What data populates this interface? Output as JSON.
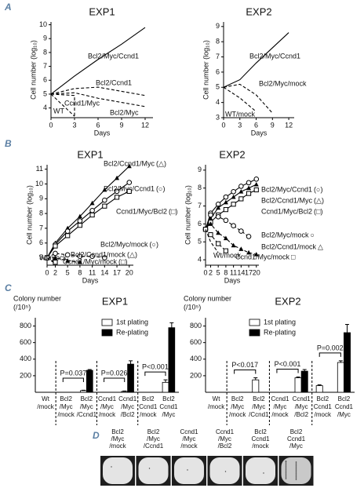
{
  "panel_labels": [
    "A",
    "B",
    "C",
    "D"
  ],
  "chart_data": [
    {
      "type": "line",
      "title": "EXP1",
      "xlabel": "Days",
      "ylabel": "Cell number (log₁₀)",
      "xlim": [
        0,
        13
      ],
      "xticks": [
        0,
        3,
        6,
        9,
        12
      ],
      "ylim": [
        3.3,
        10.2
      ],
      "yticks": [
        4,
        5,
        6,
        7,
        8,
        9,
        10
      ],
      "series": [
        {
          "name": "Bcl2/Myc/Ccnd1",
          "color": "#000000",
          "linestyle": "solid",
          "x": [
            0,
            3,
            6,
            9,
            12
          ],
          "values": [
            5,
            6.3,
            7.5,
            8.6,
            9.8
          ]
        },
        {
          "name": "Bcl2/Ccnd1",
          "color": "#000000",
          "linestyle": "dashed",
          "x": [
            0,
            3,
            6,
            9,
            12
          ],
          "values": [
            5,
            5.4,
            5.5,
            5.2,
            4.9
          ]
        },
        {
          "name": "Ccnd1/Myc",
          "color": "#000000",
          "linestyle": "dashed",
          "x": [
            0,
            3,
            3
          ],
          "values": [
            5,
            4.9,
            3.3
          ]
        },
        {
          "name": "Bcl2/Myc",
          "color": "#000000",
          "linestyle": "dashed",
          "x": [
            0,
            3,
            6,
            9,
            12
          ],
          "values": [
            5,
            5.1,
            4.7,
            4.4,
            4.1
          ]
        },
        {
          "name": "WT",
          "color": "#000000",
          "linestyle": "dashed",
          "x": [
            0,
            3
          ],
          "values": [
            5,
            3.4
          ]
        }
      ]
    },
    {
      "type": "line",
      "title": "EXP2",
      "xlabel": "Days",
      "ylabel": "Cell number (log₁₀)",
      "xlim": [
        0,
        13
      ],
      "xticks": [
        0,
        3,
        6,
        9,
        12
      ],
      "ylim": [
        3,
        9.3
      ],
      "yticks": [
        3,
        4,
        5,
        6,
        7,
        8,
        9
      ],
      "series": [
        {
          "name": "Bcl2/Myc/Ccnd1",
          "color": "#000000",
          "linestyle": "solid",
          "x": [
            0,
            3,
            6,
            9,
            12
          ],
          "values": [
            5,
            5.5,
            6.6,
            7.6,
            8.6
          ]
        },
        {
          "name": "Bcl2/Myc/mock",
          "color": "#000000",
          "linestyle": "dashed",
          "x": [
            0,
            3,
            6,
            9
          ],
          "values": [
            5,
            5.2,
            4.5,
            3.3
          ]
        },
        {
          "name": "WT/mock",
          "color": "#000000",
          "linestyle": "dashed",
          "x": [
            0,
            3,
            6
          ],
          "values": [
            5,
            4.3,
            3.4
          ]
        }
      ]
    },
    {
      "type": "line",
      "title": "EXP1",
      "xlabel": "Days",
      "ylabel": "Cell number (log₁₀)",
      "x": [
        0,
        2,
        5,
        8,
        11,
        14,
        17,
        20
      ],
      "xlim": [
        0,
        21
      ],
      "xticks": [
        0,
        2,
        5,
        8,
        11,
        14,
        17,
        20
      ],
      "ylim": [
        4.5,
        11.3
      ],
      "yticks": [
        5,
        6,
        7,
        8,
        9,
        10,
        11
      ],
      "series": [
        {
          "name": "Bcl2/Ccnd1/Myc",
          "symbol": "(△)",
          "marker": "triangle",
          "color": "#000000",
          "linestyle": "solid",
          "values": [
            5,
            6,
            7,
            7.8,
            8.7,
            9.6,
            10.4,
            11.2
          ]
        },
        {
          "name": "Bcl2/Myc/Ccnd1",
          "symbol": "(○)",
          "marker": "circle",
          "color": "#000000",
          "linestyle": "solid",
          "values": [
            5,
            5.9,
            6.8,
            7.5,
            8.2,
            8.9,
            9.5,
            10.1
          ]
        },
        {
          "name": "Ccnd1/Myc/Bcl2",
          "symbol": "(□)",
          "marker": "square",
          "color": "#000000",
          "linestyle": "solid",
          "values": [
            5,
            5.8,
            6.5,
            7.2,
            7.9,
            8.5,
            9.1,
            9.5
          ]
        },
        {
          "name": "Bcl2/Myc/mock",
          "symbol": "(○)",
          "marker": "circle",
          "color": "#000000",
          "linestyle": "dashed",
          "values": [
            5,
            5.3,
            5.2,
            5.1,
            5.1,
            5.0,
            null,
            null
          ]
        },
        {
          "name": "Bcl2/Ccnd1/mock",
          "symbol": "(△)",
          "marker": "triangle",
          "color": "#000000",
          "linestyle": "dashed",
          "values": [
            5,
            5.0,
            4.8,
            4.7,
            null,
            null,
            null,
            null
          ]
        },
        {
          "name": "Ccnd1/Myc/mock",
          "symbol": "(□)",
          "marker": "square",
          "color": "#000000",
          "linestyle": "dashed",
          "values": [
            5,
            4.7,
            null,
            null,
            null,
            null,
            null,
            null
          ]
        },
        {
          "name": "Wt/mock",
          "color": "#000000",
          "linestyle": "dashed",
          "values": [
            5,
            4.6,
            null,
            null,
            null,
            null,
            null,
            null
          ]
        }
      ]
    },
    {
      "type": "line",
      "title": "EXP2",
      "xlabel": "Days",
      "ylabel": "Cell number (log₁₀)",
      "x": [
        0,
        2,
        5,
        8,
        11,
        14,
        17,
        20
      ],
      "xlim": [
        0,
        21
      ],
      "xticks": [
        0,
        2,
        5,
        8,
        11,
        14,
        17,
        20
      ],
      "ylim": [
        3.7,
        9.3
      ],
      "yticks": [
        4,
        5,
        6,
        7,
        8,
        9
      ],
      "series": [
        {
          "name": "Bcl2/Myc/Ccnd1",
          "symbol": "(○)",
          "marker": "circle",
          "color": "#000000",
          "linestyle": "solid",
          "values": [
            5.7,
            6.6,
            7.1,
            7.5,
            7.8,
            8.1,
            8.3,
            8.5
          ]
        },
        {
          "name": "Bcl2/Ccnd1/Myc",
          "symbol": "(△)",
          "marker": "triangle",
          "color": "#000000",
          "linestyle": "solid",
          "values": [
            5.7,
            6.3,
            6.9,
            7.2,
            7.5,
            7.8,
            8.0,
            8.2
          ]
        },
        {
          "name": "Ccnd1/Myc/Bcl2",
          "symbol": "(□)",
          "marker": "square",
          "color": "#000000",
          "linestyle": "solid",
          "values": [
            5.7,
            6.1,
            6.5,
            6.8,
            7.1,
            7.4,
            7.7,
            7.9
          ]
        },
        {
          "name": "Bcl2/Myc/mock",
          "symbol": "○",
          "marker": "circle",
          "color": "#000000",
          "linestyle": "dashed",
          "values": [
            5.7,
            6.5,
            6.4,
            6.2,
            5.9,
            5.6,
            5.3,
            null
          ]
        },
        {
          "name": "Bcl2/Ccnd1/mock",
          "symbol": "△",
          "marker": "triangle",
          "color": "#000000",
          "linestyle": "dashed",
          "values": [
            5.7,
            6.0,
            5.5,
            5.2,
            4.8,
            4.6,
            4.4,
            4.3
          ]
        },
        {
          "name": "Ccnd1/Myc/mock",
          "symbol": "□",
          "marker": "square",
          "color": "#000000",
          "linestyle": "dashed",
          "values": [
            5.7,
            5.4,
            4.9,
            4.5,
            null,
            null,
            null,
            null
          ]
        },
        {
          "name": "Wt/mock",
          "color": "#000000",
          "linestyle": "dashed",
          "values": [
            5.7,
            5.0,
            4.4,
            null,
            null,
            null,
            null,
            null
          ]
        }
      ]
    },
    {
      "type": "bar",
      "title": "EXP1",
      "ylabel": [
        "Colony number",
        "(/10⁵)"
      ],
      "categories": [
        [
          "Wt",
          "/mock"
        ],
        [
          "Bcl2",
          "/Myc",
          "/mock"
        ],
        [
          "Bcl2",
          "/Myc",
          "/Ccnd1"
        ],
        [
          "Ccnd1",
          "/Myc",
          "/mock"
        ],
        [
          "Ccnd1",
          "/Myc",
          "/Bcl2"
        ],
        [
          "Bcl2",
          "Ccnd1",
          "/mock"
        ],
        [
          "Bcl2",
          "Ccnd1",
          "/Myc"
        ]
      ],
      "ylim": [
        0,
        900
      ],
      "yticks": [
        200,
        400,
        600,
        800
      ],
      "series": [
        {
          "name": "1st plating",
          "color": "#ffffff",
          "values": [
            0,
            0,
            20,
            0,
            10,
            0,
            120
          ],
          "errors": [
            null,
            null,
            5,
            null,
            5,
            null,
            30
          ]
        },
        {
          "name": "Re-plating",
          "color": "#000000",
          "values": [
            0,
            0,
            265,
            0,
            340,
            0,
            780
          ],
          "errors": [
            null,
            null,
            10,
            null,
            40,
            null,
            60
          ]
        }
      ],
      "annotations": [
        "P=0.037",
        "P=0.026",
        "P<0.001"
      ]
    },
    {
      "type": "bar",
      "title": "EXP2",
      "ylabel": [
        "Colony number",
        "(/10⁵)"
      ],
      "categories": [
        [
          "Wt",
          "/mock"
        ],
        [
          "Bcl2",
          "/Myc",
          "/mock"
        ],
        [
          "Bcl2",
          "/Myc",
          "/Ccnd1"
        ],
        [
          "Ccnd1",
          "/Myc",
          "/mock"
        ],
        [
          "Ccnd1",
          "/Myc",
          "/Bcl2"
        ],
        [
          "Bcl2",
          "Ccnd1",
          "/mock"
        ],
        [
          "Bcl2",
          "Ccnd1",
          "/Myc"
        ]
      ],
      "ylim": [
        0,
        900
      ],
      "yticks": [
        200,
        400,
        600,
        800
      ],
      "series": [
        {
          "name": "1st plating",
          "color": "#ffffff",
          "values": [
            0,
            0,
            150,
            0,
            175,
            80,
            360
          ],
          "errors": [
            null,
            null,
            25,
            null,
            10,
            10,
            20
          ]
        },
        {
          "name": "Re-plating",
          "color": "#000000",
          "values": [
            0,
            0,
            0,
            0,
            255,
            0,
            720
          ],
          "errors": [
            null,
            null,
            null,
            null,
            20,
            null,
            100
          ]
        }
      ],
      "annotations": [
        "P<0.017",
        "P<0.001",
        "P=0.002"
      ]
    }
  ],
  "wells": {
    "labels": [
      [
        "Bcl2",
        "/Myc",
        "/mock"
      ],
      [
        "Bcl2",
        "/Myc",
        "/Ccnd1"
      ],
      [
        "Ccnd1",
        "/Myc",
        "/mock"
      ],
      [
        "Ccnd1",
        "/Myc",
        "/Bcl2"
      ],
      [
        "Bcl2",
        "Ccnd1",
        "/mock"
      ],
      [
        "Bcl2",
        "Ccnd1",
        "/Myc"
      ]
    ]
  }
}
